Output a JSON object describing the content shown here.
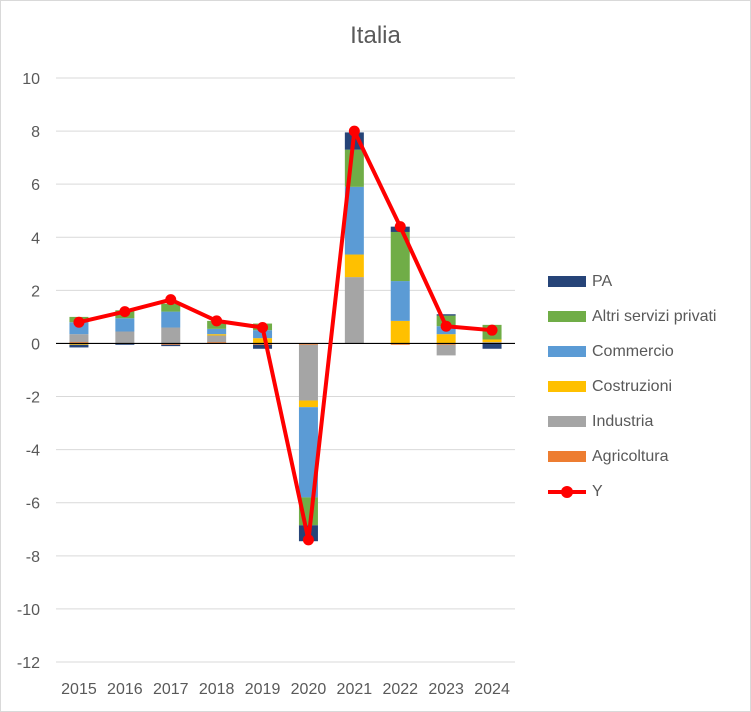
{
  "chart_data": {
    "type": "bar",
    "title": "Italia",
    "categories": [
      "2015",
      "2016",
      "2017",
      "2018",
      "2019",
      "2020",
      "2021",
      "2022",
      "2023",
      "2024"
    ],
    "ylim": [
      -12,
      10
    ],
    "yticks": [
      10,
      8,
      6,
      4,
      2,
      0,
      -2,
      -4,
      -6,
      -8,
      -10,
      -12
    ],
    "grid": true,
    "legend_position": "right",
    "stacked": true,
    "series": [
      {
        "name": "Agricoltura",
        "color": "#ed7d31",
        "values": [
          0.05,
          0.0,
          -0.05,
          0.05,
          -0.05,
          -0.05,
          0.0,
          -0.05,
          -0.05,
          0.0
        ]
      },
      {
        "name": "Industria",
        "color": "#a5a5a5",
        "values": [
          0.3,
          0.45,
          0.6,
          0.25,
          0.0,
          -2.1,
          2.5,
          0.0,
          -0.4,
          0.05
        ]
      },
      {
        "name": "Costruzioni",
        "color": "#ffc000",
        "values": [
          -0.05,
          0.0,
          0.0,
          0.05,
          0.2,
          -0.25,
          0.85,
          0.85,
          0.35,
          0.1
        ]
      },
      {
        "name": "Commercio",
        "color": "#5b9bd5",
        "values": [
          0.45,
          0.5,
          0.6,
          0.2,
          0.3,
          -3.4,
          2.55,
          1.5,
          0.3,
          0.0
        ]
      },
      {
        "name": "Altri servizi privati",
        "color": "#70ad47",
        "values": [
          0.2,
          0.3,
          0.3,
          0.3,
          0.25,
          -1.05,
          1.4,
          1.85,
          0.4,
          0.55
        ]
      },
      {
        "name": "PA",
        "color": "#264478",
        "values": [
          -0.1,
          -0.05,
          -0.05,
          0.0,
          -0.15,
          -0.6,
          0.65,
          0.2,
          0.05,
          -0.2
        ]
      }
    ],
    "line": {
      "name": "Y",
      "color": "#ff0000",
      "values": [
        0.8,
        1.2,
        1.65,
        0.85,
        0.6,
        -7.4,
        8.0,
        4.4,
        0.65,
        0.5
      ]
    }
  }
}
